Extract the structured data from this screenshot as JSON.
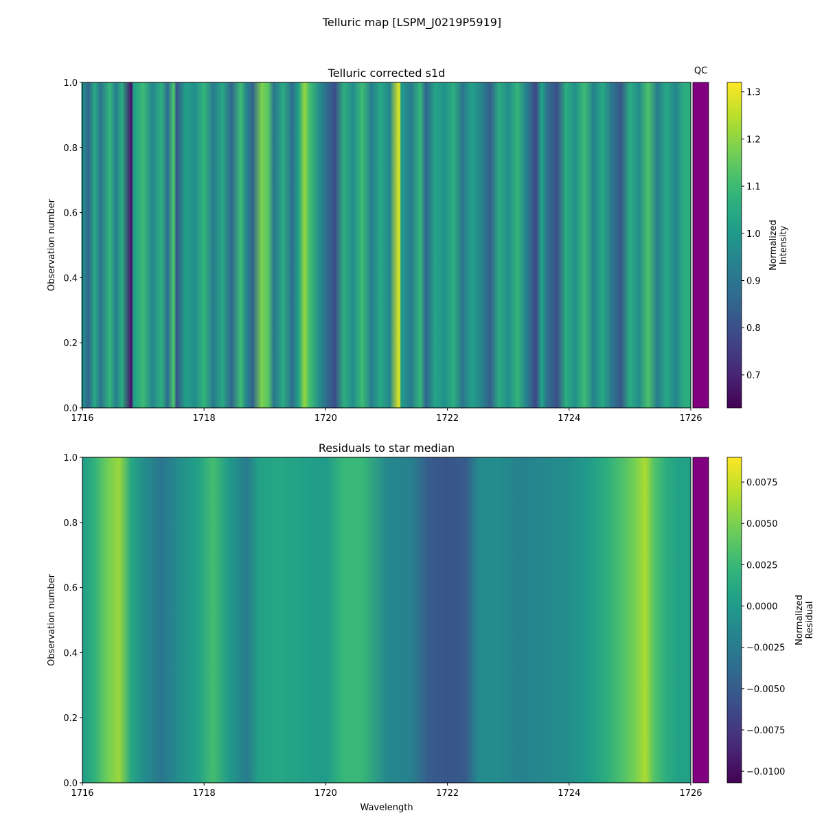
{
  "figure_title": "Telluric map [LSPM_J0219P5919]",
  "chart_data": [
    {
      "type": "heatmap",
      "title": "Telluric corrected s1d",
      "xlabel": "",
      "ylabel": "Observation number",
      "xlim": [
        1716,
        1726
      ],
      "ylim": [
        0,
        1
      ],
      "xticks": [
        1716,
        1718,
        1720,
        1722,
        1724,
        1726
      ],
      "yticks": [
        0.0,
        0.2,
        0.4,
        0.6,
        0.8,
        1.0
      ],
      "xtick_labels": [
        "1716",
        "1718",
        "1720",
        "1722",
        "1724",
        "1726"
      ],
      "ytick_labels": [
        "0.0",
        "0.2",
        "0.4",
        "0.6",
        "0.8",
        "1.0"
      ],
      "colormap": "viridis",
      "columns": [
        {
          "x": 1716.0,
          "v": 0.98
        },
        {
          "x": 1716.1,
          "v": 0.86
        },
        {
          "x": 1716.2,
          "v": 1.04
        },
        {
          "x": 1716.3,
          "v": 0.9
        },
        {
          "x": 1716.45,
          "v": 1.08
        },
        {
          "x": 1716.55,
          "v": 0.93
        },
        {
          "x": 1716.65,
          "v": 1.05
        },
        {
          "x": 1716.8,
          "v": 0.68
        },
        {
          "x": 1716.85,
          "v": 1.02
        },
        {
          "x": 1717.0,
          "v": 1.1
        },
        {
          "x": 1717.15,
          "v": 0.95
        },
        {
          "x": 1717.3,
          "v": 1.06
        },
        {
          "x": 1717.4,
          "v": 0.88
        },
        {
          "x": 1717.5,
          "v": 1.12
        },
        {
          "x": 1717.55,
          "v": 0.82
        },
        {
          "x": 1717.7,
          "v": 1.02
        },
        {
          "x": 1717.85,
          "v": 0.97
        },
        {
          "x": 1718.0,
          "v": 1.08
        },
        {
          "x": 1718.15,
          "v": 0.92
        },
        {
          "x": 1718.3,
          "v": 1.04
        },
        {
          "x": 1718.45,
          "v": 0.86
        },
        {
          "x": 1718.6,
          "v": 1.1
        },
        {
          "x": 1718.7,
          "v": 0.94
        },
        {
          "x": 1718.8,
          "v": 0.85
        },
        {
          "x": 1718.95,
          "v": 1.18
        },
        {
          "x": 1719.05,
          "v": 1.14
        },
        {
          "x": 1719.15,
          "v": 0.9
        },
        {
          "x": 1719.3,
          "v": 1.05
        },
        {
          "x": 1719.45,
          "v": 0.88
        },
        {
          "x": 1719.55,
          "v": 1.02
        },
        {
          "x": 1719.65,
          "v": 1.2
        },
        {
          "x": 1719.75,
          "v": 1.1
        },
        {
          "x": 1719.9,
          "v": 0.96
        },
        {
          "x": 1720.05,
          "v": 0.85
        },
        {
          "x": 1720.15,
          "v": 0.8
        },
        {
          "x": 1720.3,
          "v": 1.06
        },
        {
          "x": 1720.45,
          "v": 0.97
        },
        {
          "x": 1720.6,
          "v": 1.1
        },
        {
          "x": 1720.75,
          "v": 0.93
        },
        {
          "x": 1720.9,
          "v": 1.04
        },
        {
          "x": 1721.05,
          "v": 0.95
        },
        {
          "x": 1721.2,
          "v": 1.28
        },
        {
          "x": 1721.25,
          "v": 1.0
        },
        {
          "x": 1721.4,
          "v": 0.92
        },
        {
          "x": 1721.55,
          "v": 1.08
        },
        {
          "x": 1721.65,
          "v": 0.86
        },
        {
          "x": 1721.8,
          "v": 1.03
        },
        {
          "x": 1721.95,
          "v": 0.98
        },
        {
          "x": 1722.1,
          "v": 1.06
        },
        {
          "x": 1722.25,
          "v": 0.9
        },
        {
          "x": 1722.4,
          "v": 1.02
        },
        {
          "x": 1722.55,
          "v": 0.95
        },
        {
          "x": 1722.7,
          "v": 0.84
        },
        {
          "x": 1722.85,
          "v": 1.05
        },
        {
          "x": 1723.0,
          "v": 0.97
        },
        {
          "x": 1723.15,
          "v": 1.08
        },
        {
          "x": 1723.3,
          "v": 0.93
        },
        {
          "x": 1723.45,
          "v": 0.78
        },
        {
          "x": 1723.55,
          "v": 1.02
        },
        {
          "x": 1723.65,
          "v": 0.88
        },
        {
          "x": 1723.8,
          "v": 0.8
        },
        {
          "x": 1723.95,
          "v": 1.06
        },
        {
          "x": 1724.1,
          "v": 0.98
        },
        {
          "x": 1724.25,
          "v": 1.1
        },
        {
          "x": 1724.4,
          "v": 0.94
        },
        {
          "x": 1724.55,
          "v": 1.04
        },
        {
          "x": 1724.7,
          "v": 0.9
        },
        {
          "x": 1724.85,
          "v": 0.82
        },
        {
          "x": 1725.0,
          "v": 1.05
        },
        {
          "x": 1725.15,
          "v": 0.97
        },
        {
          "x": 1725.3,
          "v": 1.12
        },
        {
          "x": 1725.45,
          "v": 0.92
        },
        {
          "x": 1725.6,
          "v": 1.04
        },
        {
          "x": 1725.75,
          "v": 0.95
        },
        {
          "x": 1725.9,
          "v": 1.06
        }
      ],
      "colorbar": {
        "label": "Normalized\nIntensity",
        "range": [
          0.63,
          1.32
        ],
        "ticks": [
          0.7,
          0.8,
          0.9,
          1.0,
          1.1,
          1.2,
          1.3
        ],
        "tick_labels": [
          "0.7",
          "0.8",
          "0.9",
          "1.0",
          "1.1",
          "1.2",
          "1.3"
        ]
      },
      "qc_label": "QC",
      "qc_color": "#800080"
    },
    {
      "type": "heatmap",
      "title": "Residuals to star median",
      "xlabel": "Wavelength",
      "ylabel": "Observation number",
      "xlim": [
        1716,
        1726
      ],
      "ylim": [
        0,
        1
      ],
      "xticks": [
        1716,
        1718,
        1720,
        1722,
        1724,
        1726
      ],
      "yticks": [
        0.0,
        0.2,
        0.4,
        0.6,
        0.8,
        1.0
      ],
      "xtick_labels": [
        "1716",
        "1718",
        "1720",
        "1722",
        "1724",
        "1726"
      ],
      "ytick_labels": [
        "0.0",
        "0.2",
        "0.4",
        "0.6",
        "0.8",
        "1.0"
      ],
      "colormap": "viridis",
      "columns": [
        {
          "x": 1716.0,
          "v": 0.0
        },
        {
          "x": 1716.2,
          "v": 0.002
        },
        {
          "x": 1716.4,
          "v": 0.0045
        },
        {
          "x": 1716.6,
          "v": 0.006
        },
        {
          "x": 1716.8,
          "v": 0.001
        },
        {
          "x": 1717.0,
          "v": -0.001
        },
        {
          "x": 1717.3,
          "v": -0.003
        },
        {
          "x": 1717.6,
          "v": -0.001
        },
        {
          "x": 1717.9,
          "v": 0.0005
        },
        {
          "x": 1718.15,
          "v": 0.003
        },
        {
          "x": 1718.4,
          "v": 0.0
        },
        {
          "x": 1718.7,
          "v": -0.0025
        },
        {
          "x": 1718.9,
          "v": 0.0005
        },
        {
          "x": 1719.2,
          "v": 0.001
        },
        {
          "x": 1719.6,
          "v": 0.0005
        },
        {
          "x": 1720.0,
          "v": 0.0
        },
        {
          "x": 1720.3,
          "v": 0.0025
        },
        {
          "x": 1720.6,
          "v": 0.0025
        },
        {
          "x": 1721.0,
          "v": -0.0015
        },
        {
          "x": 1721.4,
          "v": -0.002
        },
        {
          "x": 1721.7,
          "v": -0.005
        },
        {
          "x": 1722.0,
          "v": -0.0055
        },
        {
          "x": 1722.3,
          "v": -0.005
        },
        {
          "x": 1722.5,
          "v": -0.0015
        },
        {
          "x": 1722.8,
          "v": -0.001
        },
        {
          "x": 1723.2,
          "v": -0.002
        },
        {
          "x": 1723.6,
          "v": -0.0015
        },
        {
          "x": 1724.0,
          "v": -0.001
        },
        {
          "x": 1724.3,
          "v": 0.0
        },
        {
          "x": 1724.6,
          "v": 0.0015
        },
        {
          "x": 1724.9,
          "v": 0.0035
        },
        {
          "x": 1725.1,
          "v": 0.005
        },
        {
          "x": 1725.25,
          "v": 0.0065
        },
        {
          "x": 1725.4,
          "v": 0.0035
        },
        {
          "x": 1725.6,
          "v": 0.0015
        },
        {
          "x": 1725.8,
          "v": 0.0005
        }
      ],
      "colorbar": {
        "label": "Normalized\nResidual",
        "range": [
          -0.0107,
          0.009
        ],
        "ticks": [
          -0.01,
          -0.0075,
          -0.005,
          -0.0025,
          0.0,
          0.0025,
          0.005,
          0.0075
        ],
        "tick_labels": [
          "−0.0100",
          "−0.0075",
          "−0.0050",
          "−0.0025",
          "0.0000",
          "0.0025",
          "0.0050",
          "0.0075"
        ]
      },
      "qc_label": "",
      "qc_color": "#800080"
    }
  ]
}
